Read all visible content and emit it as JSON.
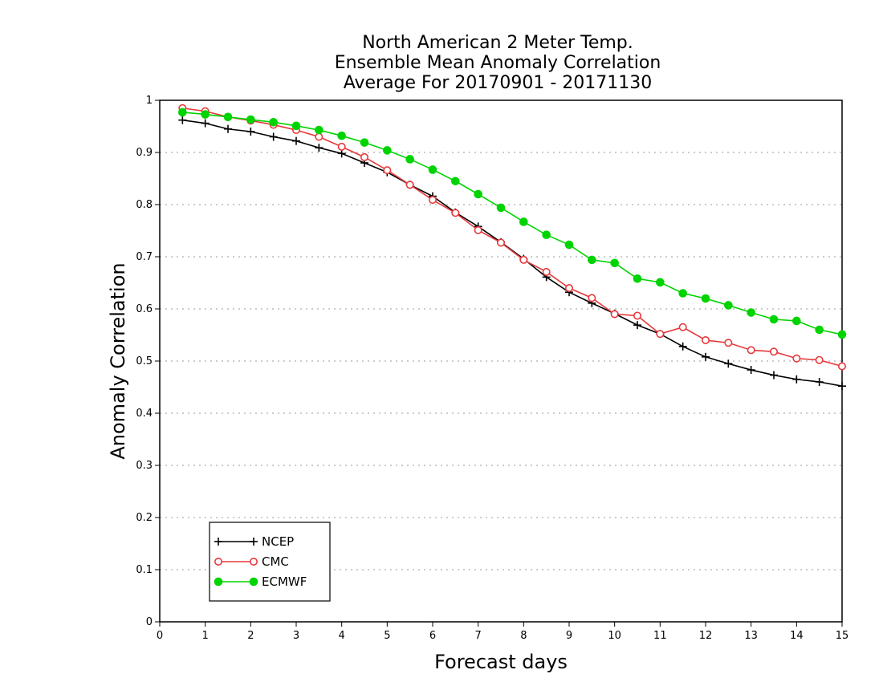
{
  "chart_data": {
    "type": "line",
    "title_lines": [
      "North American 2 Meter Temp.",
      "Ensemble Mean Anomaly Correlation",
      "Average For 20170901 - 20171130"
    ],
    "xlabel": "Forecast days",
    "ylabel": "Anomaly Correlation",
    "xlim": [
      0,
      15
    ],
    "ylim": [
      0,
      1
    ],
    "x_ticks": [
      "0",
      "1",
      "2",
      "3",
      "4",
      "5",
      "6",
      "7",
      "8",
      "9",
      "10",
      "11",
      "12",
      "13",
      "14",
      "15"
    ],
    "y_ticks": [
      "0",
      "0.1",
      "0.2",
      "0.3",
      "0.4",
      "0.5",
      "0.6",
      "0.7",
      "0.8",
      "0.9",
      "1"
    ],
    "grid": "horizontal dotted",
    "legend_position": "bottom-left",
    "x": [
      0.5,
      1,
      1.5,
      2,
      2.5,
      3,
      3.5,
      4,
      4.5,
      5,
      5.5,
      6,
      6.5,
      7,
      7.5,
      8,
      8.5,
      9,
      9.5,
      10,
      10.5,
      11,
      11.5,
      12,
      12.5,
      13,
      13.5,
      14,
      14.5,
      15
    ],
    "series": [
      {
        "name": "NCEP",
        "color": "#000000",
        "marker": "plus",
        "values": [
          0.962,
          0.956,
          0.945,
          0.94,
          0.93,
          0.922,
          0.909,
          0.898,
          0.88,
          0.862,
          0.838,
          0.816,
          0.785,
          0.758,
          0.728,
          0.696,
          0.661,
          0.632,
          0.611,
          0.591,
          0.569,
          0.552,
          0.528,
          0.508,
          0.495,
          0.483,
          0.473,
          0.465,
          0.46,
          0.452
        ]
      },
      {
        "name": "CMC",
        "color": "#e8393d",
        "marker": "open-circle",
        "values": [
          0.985,
          0.979,
          0.968,
          0.961,
          0.953,
          0.943,
          0.93,
          0.911,
          0.891,
          0.866,
          0.838,
          0.809,
          0.784,
          0.751,
          0.727,
          0.694,
          0.671,
          0.64,
          0.621,
          0.59,
          0.587,
          0.552,
          0.565,
          0.54,
          0.535,
          0.521,
          0.518,
          0.505,
          0.502,
          0.49
        ]
      },
      {
        "name": "ECMWF",
        "color": "#00d400",
        "marker": "filled-circle",
        "values": [
          0.977,
          0.973,
          0.968,
          0.963,
          0.958,
          0.951,
          0.943,
          0.932,
          0.919,
          0.904,
          0.887,
          0.867,
          0.845,
          0.82,
          0.794,
          0.767,
          0.742,
          0.723,
          0.694,
          0.688,
          0.658,
          0.651,
          0.63,
          0.62,
          0.607,
          0.593,
          0.58,
          0.577,
          0.56,
          0.551
        ]
      }
    ]
  }
}
